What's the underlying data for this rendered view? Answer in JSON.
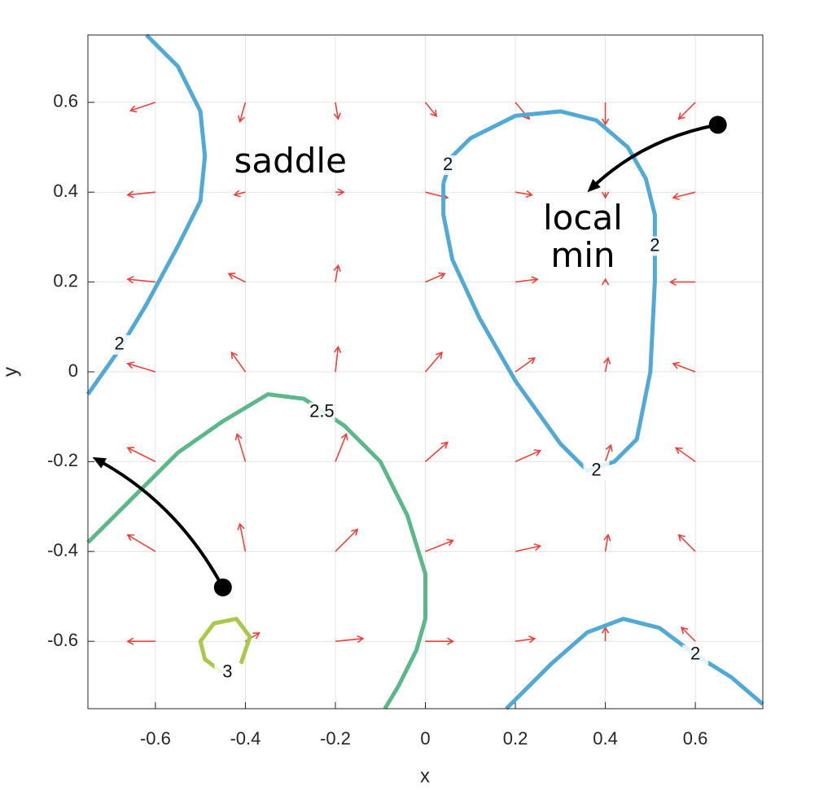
{
  "chart_data": {
    "type": "contour-quiver",
    "xlabel": "x",
    "ylabel": "y",
    "xlim": [
      -0.75,
      0.75
    ],
    "ylim": [
      -0.75,
      0.75
    ],
    "xticks": [
      -0.6,
      -0.4,
      -0.2,
      0,
      0.2,
      0.4,
      0.6
    ],
    "yticks": [
      -0.6,
      -0.4,
      -0.2,
      0,
      0.2,
      0.4,
      0.6
    ],
    "grid": true,
    "quiver": {
      "color": "#e5453e",
      "x_grid": [
        -0.6,
        -0.4,
        -0.2,
        0,
        0.2,
        0.4,
        0.6
      ],
      "y_grid": [
        0.6,
        0.4,
        0.2,
        0,
        -0.2,
        -0.4,
        -0.6
      ],
      "u": [
        [
          -0.9,
          -0.2,
          0.1,
          0.4,
          0.5,
          0,
          -0.6
        ],
        [
          -1,
          -0.4,
          0.3,
          0.8,
          0.6,
          0,
          -0.8
        ],
        [
          -1,
          -0.6,
          0.1,
          0.7,
          0.8,
          0,
          -0.9
        ],
        [
          -1,
          -0.5,
          0.1,
          0.6,
          0.7,
          0.1,
          -0.8
        ],
        [
          -1,
          -0.3,
          0.4,
          0.8,
          0.9,
          0.2,
          -0.7
        ],
        [
          -1,
          -0.2,
          0.8,
          1,
          0.9,
          0.1,
          -0.6
        ],
        [
          -1,
          0.5,
          1,
          1,
          0.7,
          0,
          -0.5
        ]
      ],
      "v": [
        [
          -0.3,
          -0.7,
          -0.6,
          -0.5,
          -0.6,
          -0.8,
          -0.6
        ],
        [
          -0.1,
          -0.1,
          0,
          -0.2,
          -0.1,
          -0.2,
          -0.2
        ],
        [
          0.1,
          0.3,
          0.6,
          0.3,
          0.1,
          0.1,
          0
        ],
        [
          0.3,
          0.7,
          0.9,
          0.7,
          0.5,
          0.5,
          0.3
        ],
        [
          0.5,
          1,
          1,
          0.7,
          0.4,
          0.6,
          0.5
        ],
        [
          0.6,
          1,
          0.8,
          0.4,
          0.2,
          0.6,
          0.6
        ],
        [
          0,
          0.3,
          0.1,
          0,
          0.1,
          0.5,
          0.5
        ]
      ]
    },
    "contours": [
      {
        "level": 2,
        "color": "#52a9d4",
        "x": [
          -0.62,
          -0.55,
          -0.5,
          -0.49,
          -0.5,
          -0.55,
          -0.62,
          -0.68,
          -0.75
        ],
        "y": [
          0.75,
          0.68,
          0.58,
          0.48,
          0.38,
          0.28,
          0.15,
          0.05,
          -0.05
        ],
        "labels": [
          {
            "x": -0.68,
            "y": 0.06
          }
        ]
      },
      {
        "level": 2,
        "color": "#52a9d4",
        "x": [
          0.04,
          0.06,
          0.1,
          0.2,
          0.3,
          0.38,
          0.45,
          0.49,
          0.51,
          0.51,
          0.5,
          0.47,
          0.42,
          0.36,
          0.3,
          0.2,
          0.12,
          0.06,
          0.04,
          0.04
        ],
        "y": [
          0.42,
          0.48,
          0.52,
          0.57,
          0.58,
          0.56,
          0.5,
          0.43,
          0.35,
          0.2,
          0,
          -0.15,
          -0.2,
          -0.22,
          -0.16,
          -0.02,
          0.12,
          0.25,
          0.35,
          0.42
        ],
        "labels": [
          {
            "x": 0.05,
            "y": 0.46
          },
          {
            "x": 0.51,
            "y": 0.28
          },
          {
            "x": 0.38,
            "y": -0.22
          }
        ]
      },
      {
        "level": 2,
        "color": "#52a9d4",
        "x": [
          0.18,
          0.28,
          0.36,
          0.44,
          0.52,
          0.6,
          0.68,
          0.75
        ],
        "y": [
          -0.75,
          -0.65,
          -0.58,
          -0.55,
          -0.57,
          -0.63,
          -0.68,
          -0.74
        ],
        "labels": [
          {
            "x": 0.6,
            "y": -0.63
          }
        ]
      },
      {
        "level": 2.5,
        "color": "#5cb88a",
        "x": [
          -0.75,
          -0.65,
          -0.55,
          -0.45,
          -0.35,
          -0.27,
          -0.18,
          -0.1,
          -0.04,
          0,
          0,
          -0.02,
          -0.06,
          -0.09
        ],
        "y": [
          -0.38,
          -0.28,
          -0.18,
          -0.11,
          -0.05,
          -0.06,
          -0.12,
          -0.2,
          -0.32,
          -0.45,
          -0.55,
          -0.62,
          -0.7,
          -0.75
        ],
        "labels": [
          {
            "x": -0.23,
            "y": -0.09
          }
        ]
      },
      {
        "level": 3,
        "color": "#a9c84c",
        "x": [
          -0.45,
          -0.49,
          -0.5,
          -0.47,
          -0.42,
          -0.39,
          -0.41
        ],
        "y": [
          -0.67,
          -0.64,
          -0.6,
          -0.56,
          -0.55,
          -0.59,
          -0.65
        ],
        "labels": [
          {
            "x": -0.44,
            "y": -0.67
          }
        ]
      }
    ],
    "annotations": [
      {
        "text": "saddle",
        "x": -0.3,
        "y": 0.47
      },
      {
        "text": "local min",
        "x": 0.35,
        "y": 0.3
      }
    ],
    "arrows": [
      {
        "from": [
          0.65,
          0.55
        ],
        "to": [
          0.36,
          0.4
        ]
      },
      {
        "from": [
          -0.45,
          -0.48
        ],
        "to": [
          -0.74,
          -0.19
        ]
      }
    ]
  }
}
